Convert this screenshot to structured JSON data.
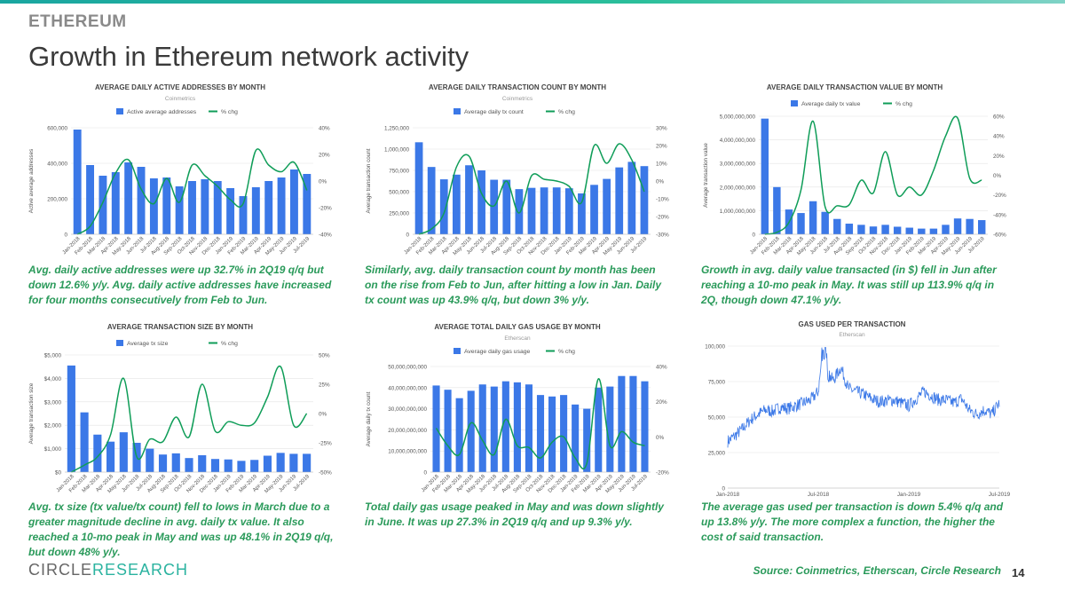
{
  "page": {
    "section_label": "ETHEREUM",
    "title": "Growth in Ethereum network activity",
    "logo_part1": "CIRCLE",
    "logo_part2": "RESEARCH",
    "source": "Source: Coinmetrics, Etherscan, Circle Research",
    "page_number": "14",
    "captions": [
      "Avg. daily active addresses were up 32.7% in 2Q19 q/q but down 12.6% y/y. Avg. daily active addresses have increased for four months consecutively from Feb to Jun.",
      "Similarly, avg. daily transaction count by month has been on the rise from Feb to Jun, after hitting a low in Jan. Daily tx count was up 43.9% q/q, but down 3% y/y.",
      "Growth in avg. daily value transacted (in $) fell in Jun after reaching a 10-mo peak in May. It was still up 113.9% q/q in 2Q, though down 47.1% y/y.",
      "Avg. tx size (tx value/tx count) fell to lows in March due to a greater magnitude decline in avg. daily tx value. It also reached a 10-mo peak in May and was up 48.1% in 2Q19 q/q, but down 48% y/y.",
      "Total daily gas usage peaked in May and was down slightly in June. It was up 27.3% in 2Q19 q/q and up 9.3% y/y.",
      "The average gas used per transaction is down 5.4% q/q and up 13.8% y/y. The more complex a function, the higher the cost of said transaction."
    ]
  },
  "colors": {
    "bar": "#3b78e7",
    "line": "#0f9d58",
    "caption": "#2a9a5a",
    "axis_text": "#555555"
  },
  "chart_data": [
    {
      "type": "bar",
      "title": "AVERAGE DAILY ACTIVE ADDRESSES BY MONTH",
      "subtitle": "Coinmetrics",
      "ylabel": "Active average addresses",
      "categories": [
        "Jan-2018",
        "Feb-2018",
        "Mar-2018",
        "Apr-2018",
        "May-2018",
        "Jun-2018",
        "Jul-2018",
        "Aug-2018",
        "Sep-2018",
        "Oct-2018",
        "Nov-2018",
        "Dec-2018",
        "Jan-2019",
        "Feb-2019",
        "Mar-2019",
        "Apr-2019",
        "May-2019",
        "Jun-2019",
        "Jul-2019"
      ],
      "series": [
        {
          "name": "Active average addresses",
          "kind": "bar",
          "axis": "left",
          "values": [
            590000,
            390000,
            330000,
            350000,
            405000,
            380000,
            315000,
            320000,
            270000,
            300000,
            310000,
            300000,
            260000,
            215000,
            265000,
            300000,
            320000,
            365000,
            340000
          ]
        },
        {
          "name": "% chg",
          "kind": "line",
          "axis": "right",
          "values": [
            -40,
            -34,
            -16,
            6,
            16,
            -6,
            -17,
            2,
            -16,
            12,
            4,
            -4,
            -14,
            -17,
            23,
            12,
            7,
            14,
            -7
          ]
        }
      ],
      "left_ticks": [
        0,
        200000,
        400000,
        600000
      ],
      "left_tick_labels": [
        "0",
        "200,000",
        "400,000",
        "600,000"
      ],
      "right_ticks": [
        -40,
        -20,
        0,
        20,
        40
      ],
      "right_tick_labels": [
        "-40%",
        "-20%",
        "0%",
        "20%",
        "40%"
      ]
    },
    {
      "type": "bar",
      "title": "AVERAGE DAILY TRANSACTION COUNT BY MONTH",
      "subtitle": "Coinmetrics",
      "ylabel": "Average transaction count",
      "categories": [
        "Jan-2018",
        "Feb-2018",
        "Mar-2018",
        "Apr-2018",
        "May-2018",
        "Jun-2018",
        "Jul-2018",
        "Aug-2018",
        "Sep-2018",
        "Oct-2018",
        "Nov-2018",
        "Dec-2018",
        "Jan-2019",
        "Feb-2019",
        "Mar-2019",
        "Apr-2019",
        "May-2019",
        "Jun-2019",
        "Jul-2019"
      ],
      "series": [
        {
          "name": "Average daily tx count",
          "kind": "bar",
          "axis": "left",
          "values": [
            1080000,
            790000,
            645000,
            700000,
            810000,
            750000,
            640000,
            640000,
            530000,
            545000,
            550000,
            550000,
            540000,
            480000,
            580000,
            650000,
            785000,
            850000,
            800000
          ]
        },
        {
          "name": "% chg",
          "kind": "line",
          "axis": "right",
          "values": [
            -30,
            -27,
            -18,
            8,
            14,
            -7,
            -14,
            0,
            -18,
            3,
            1,
            0,
            -3,
            -12,
            20,
            10,
            21,
            12,
            -6
          ]
        }
      ],
      "left_ticks": [
        0,
        250000,
        500000,
        750000,
        1000000,
        1250000
      ],
      "left_tick_labels": [
        "0",
        "250,000",
        "500,000",
        "750,000",
        "1,000,000",
        "1,250,000"
      ],
      "right_ticks": [
        -30,
        -20,
        -10,
        0,
        10,
        20,
        30
      ],
      "right_tick_labels": [
        "-30%",
        "-20%",
        "-10%",
        "0%",
        "10%",
        "20%",
        "30%"
      ]
    },
    {
      "type": "bar",
      "title": "AVERAGE DAILY TRANSACTION VALUE BY MONTH",
      "ylabel": "Average transaction value",
      "categories": [
        "Jan-2018",
        "Feb-2018",
        "Mar-2018",
        "Apr-2018",
        "May-2018",
        "Jun-2018",
        "Jul-2018",
        "Aug-2018",
        "Sep-2018",
        "Oct-2018",
        "Nov-2018",
        "Dec-2018",
        "Jan-2019",
        "Feb-2019",
        "Mar-2019",
        "Apr-2019",
        "May-2019",
        "Jun-2019",
        "Jul-2019"
      ],
      "series": [
        {
          "name": "Average daily tx value",
          "kind": "bar",
          "axis": "left",
          "values": [
            4900000000,
            2000000000,
            1050000000,
            900000000,
            1400000000,
            950000000,
            650000000,
            450000000,
            400000000,
            330000000,
            400000000,
            320000000,
            280000000,
            240000000,
            240000000,
            400000000,
            670000000,
            650000000,
            600000000
          ]
        },
        {
          "name": "% chg",
          "kind": "line",
          "axis": "right",
          "values": [
            -60,
            -58,
            -48,
            -15,
            55,
            -32,
            -31,
            -30,
            -5,
            -18,
            24,
            -20,
            -12,
            -20,
            5,
            40,
            58,
            -3,
            -5
          ]
        }
      ],
      "left_ticks": [
        0,
        1000000000,
        2000000000,
        3000000000,
        4000000000,
        5000000000
      ],
      "left_tick_labels": [
        "0",
        "1,000,000,000",
        "2,000,000,000",
        "3,000,000,000",
        "4,000,000,000",
        "5,000,000,000"
      ],
      "right_ticks": [
        -60,
        -40,
        -20,
        0,
        20,
        40,
        60
      ],
      "right_tick_labels": [
        "-60%",
        "-40%",
        "-20%",
        "0%",
        "20%",
        "40%",
        "60%"
      ]
    },
    {
      "type": "bar",
      "title": "AVERAGE TRANSACTION SIZE BY MONTH",
      "ylabel": "Average transaction size",
      "categories": [
        "Jan-2018",
        "Feb-2018",
        "Mar-2018",
        "Apr-2018",
        "May-2018",
        "Jun-2018",
        "Jul-2018",
        "Aug-2018",
        "Sep-2018",
        "Oct-2018",
        "Nov-2018",
        "Dec-2018",
        "Jan-2019",
        "Feb-2019",
        "Mar-2019",
        "Apr-2019",
        "May-2019",
        "Jun-2019",
        "Jul-2019"
      ],
      "series": [
        {
          "name": "Average tx size",
          "kind": "bar",
          "axis": "left",
          "values": [
            4550,
            2550,
            1600,
            1300,
            1700,
            1250,
            1000,
            750,
            800,
            600,
            720,
            560,
            540,
            480,
            520,
            700,
            820,
            780,
            780
          ]
        },
        {
          "name": "% chg",
          "kind": "line",
          "axis": "right",
          "values": [
            -50,
            -44,
            -37,
            -18,
            30,
            -37,
            -22,
            -24,
            -3,
            -20,
            25,
            -15,
            -7,
            -10,
            -8,
            14,
            40,
            -10,
            0
          ]
        }
      ],
      "left_ticks": [
        0,
        1000,
        2000,
        3000,
        4000,
        5000
      ],
      "left_tick_labels": [
        "$0",
        "$1,000",
        "$2,000",
        "$3,000",
        "$4,000",
        "$5,000"
      ],
      "right_ticks": [
        -50,
        -25,
        0,
        25,
        50
      ],
      "right_tick_labels": [
        "-50%",
        "-25%",
        "0%",
        "25%",
        "50%"
      ]
    },
    {
      "type": "bar",
      "title": "AVERAGE TOTAL DAILY GAS USAGE BY MONTH",
      "subtitle": "Etherscan",
      "ylabel": "Average daily tx count",
      "categories": [
        "Jan-2018",
        "Feb-2018",
        "Mar-2018",
        "Apr-2018",
        "May-2018",
        "Jun-2018",
        "Jul-2018",
        "Aug-2018",
        "Sep-2018",
        "Oct-2018",
        "Nov-2018",
        "Dec-2018",
        "Jan-2019",
        "Feb-2019",
        "Mar-2019",
        "Apr-2019",
        "May-2019",
        "Jun-2019",
        "Jul-2019"
      ],
      "series": [
        {
          "name": "Average daily gas usage",
          "kind": "bar",
          "axis": "left",
          "values": [
            41000000000,
            39000000000,
            35000000000,
            38500000000,
            41500000000,
            40500000000,
            43000000000,
            42500000000,
            41500000000,
            36500000000,
            35800000000,
            36500000000,
            32000000000,
            30000000000,
            40000000000,
            40500000000,
            45500000000,
            45500000000,
            43000000000
          ]
        },
        {
          "name": "% chg",
          "kind": "line",
          "axis": "right",
          "values": [
            5,
            -5,
            -10,
            8,
            -2,
            -10,
            10,
            -5,
            -6,
            -12,
            -3,
            0,
            -12,
            -15,
            33,
            -5,
            3,
            -3,
            -5
          ]
        }
      ],
      "left_ticks": [
        0,
        10000000000,
        20000000000,
        30000000000,
        40000000000,
        50000000000
      ],
      "left_tick_labels": [
        "0",
        "10,000,000,000",
        "20,000,000,000",
        "30,000,000,000",
        "40,000,000,000",
        "50,000,000,000"
      ],
      "right_ticks": [
        -20,
        0,
        20,
        40
      ],
      "right_tick_labels": [
        "-20%",
        "0%",
        "20%",
        "40%"
      ]
    },
    {
      "type": "line",
      "title": "GAS USED PER TRANSACTION",
      "subtitle": "Etherscan",
      "xlim": [
        "Jan-2018",
        "Jul-2019"
      ],
      "x_tick_labels": [
        "Jan-2018",
        "Jul-2018",
        "Jan-2019",
        "Jul-2019"
      ],
      "anchors": [
        [
          0,
          33000
        ],
        [
          0.5,
          37000
        ],
        [
          1,
          42000
        ],
        [
          1.5,
          48000
        ],
        [
          2,
          52000
        ],
        [
          2.5,
          55000
        ],
        [
          3,
          54000
        ],
        [
          3.5,
          57000
        ],
        [
          4,
          56000
        ],
        [
          5,
          60000
        ],
        [
          5.5,
          62000
        ],
        [
          6,
          68000
        ],
        [
          6.3,
          97000
        ],
        [
          6.6,
          80000
        ],
        [
          7,
          76000
        ],
        [
          7.5,
          85000
        ],
        [
          8,
          70000
        ],
        [
          8.5,
          68000
        ],
        [
          9,
          66000
        ],
        [
          9.5,
          63000
        ],
        [
          10,
          61000
        ],
        [
          11,
          62000
        ],
        [
          12,
          58000
        ],
        [
          12.5,
          63000
        ],
        [
          13,
          68000
        ],
        [
          13.5,
          65000
        ],
        [
          14,
          62000
        ],
        [
          14.5,
          62000
        ],
        [
          15,
          60000
        ],
        [
          15.5,
          63000
        ],
        [
          16,
          55000
        ],
        [
          16.5,
          52000
        ],
        [
          17,
          55000
        ],
        [
          17.5,
          52000
        ],
        [
          18,
          60000
        ]
      ],
      "left_ticks": [
        0,
        25000,
        50000,
        75000,
        100000
      ],
      "left_tick_labels": [
        "0",
        "25,000",
        "50,000",
        "75,000",
        "100,000"
      ]
    }
  ]
}
